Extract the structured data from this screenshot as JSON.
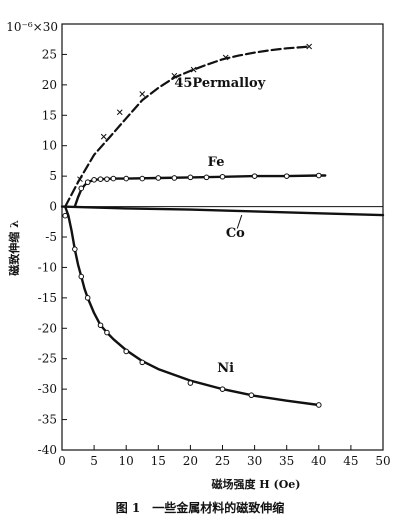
{
  "chart_data": {
    "type": "line",
    "title": "",
    "caption": "图 1　一些金属材料的磁致伸缩",
    "xlabel": "磁场强度 H (Oe)",
    "ylabel": "磁致伸缩 λ",
    "y_scale_label": "10⁻⁶×30",
    "xlim": [
      0,
      50
    ],
    "ylim": [
      -40,
      30
    ],
    "x_ticks": [
      0,
      5,
      10,
      15,
      20,
      25,
      30,
      35,
      40,
      45,
      50
    ],
    "y_ticks": [
      -40,
      -35,
      -30,
      -25,
      -20,
      -15,
      -10,
      -5,
      0,
      5,
      10,
      15,
      20,
      25
    ],
    "grid": false,
    "legend": "none",
    "series": [
      {
        "name": "45Permalloy",
        "marker": "x",
        "x": [
          0.5,
          2.5,
          5,
          7.5,
          10,
          12.5,
          15,
          17.5,
          20,
          22.5,
          25,
          27.5,
          30,
          32.5,
          35,
          37.5,
          38.5
        ],
        "y": [
          0,
          4,
          8.5,
          11.5,
          14.5,
          17.5,
          19.5,
          21.2,
          22.3,
          23.3,
          24.2,
          24.8,
          25.3,
          25.7,
          26,
          26.2,
          26.3
        ],
        "points_x": [
          2.8,
          6.5,
          9,
          12.5,
          17.5,
          20.5,
          25.5,
          38.5
        ],
        "points_y": [
          4.5,
          11.5,
          15.5,
          18.5,
          21.5,
          22.5,
          24.5,
          26.3
        ]
      },
      {
        "name": "Fe",
        "marker": "o",
        "x": [
          2,
          2.5,
          3,
          3.5,
          4,
          5,
          6,
          8,
          10,
          15,
          20,
          25,
          30,
          35,
          40,
          41
        ],
        "y": [
          0,
          1.5,
          2.8,
          3.5,
          4,
          4.4,
          4.5,
          4.6,
          4.6,
          4.7,
          4.8,
          4.9,
          5,
          5,
          5.1,
          5.1
        ],
        "points_x": [
          3,
          4,
          5,
          6,
          7,
          8,
          10,
          12.5,
          15,
          17.5,
          20,
          22.5,
          25,
          30,
          35,
          40
        ],
        "points_y": [
          3,
          4,
          4.4,
          4.5,
          4.5,
          4.6,
          4.6,
          4.6,
          4.7,
          4.7,
          4.8,
          4.8,
          4.9,
          5,
          5,
          5.1
        ]
      },
      {
        "name": "Co",
        "marker": "none",
        "x": [
          0,
          10,
          20,
          30,
          40,
          50
        ],
        "y": [
          0,
          -0.3,
          -0.5,
          -0.8,
          -1.1,
          -1.4
        ],
        "points_x": [],
        "points_y": []
      },
      {
        "name": "Ni",
        "marker": "o",
        "x": [
          0.5,
          1,
          1.5,
          2,
          2.5,
          3,
          3.5,
          4,
          5,
          6,
          7,
          8,
          10,
          12.5,
          15,
          20,
          25,
          30,
          35,
          40
        ],
        "y": [
          0,
          -1.5,
          -4,
          -7,
          -9.5,
          -11.5,
          -13.5,
          -15,
          -17.5,
          -19.5,
          -20.7,
          -21.8,
          -23.6,
          -25.4,
          -26.7,
          -28.6,
          -30,
          -31.1,
          -31.9,
          -32.6
        ],
        "points_x": [
          0.5,
          2,
          3,
          4,
          6,
          7,
          10,
          12.5,
          20,
          25,
          29.5,
          40
        ],
        "points_y": [
          -1.5,
          -7,
          -11.5,
          -15,
          -19.5,
          -20.7,
          -23.8,
          -25.6,
          -29,
          -30,
          -31,
          -32.6
        ]
      }
    ]
  }
}
